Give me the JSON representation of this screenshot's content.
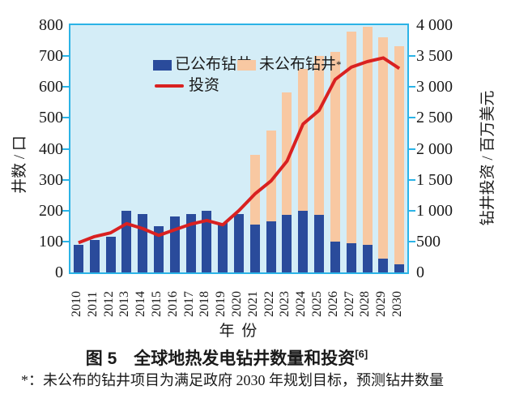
{
  "figure": {
    "title": "图 5　全球地热发电钻井数量和投资",
    "title_ref": "[6]",
    "footnote": "*：未公布的钻井项目为满足政府 2030 年规划目标，预测钻井数量",
    "legend_star": "*"
  },
  "colors": {
    "announced_bar": "#2a4b9b",
    "unannounced_bar": "#f8c8a2",
    "investment_line": "#d92121",
    "plot_background": "#d4edf7",
    "axis_frame": "#2bb3e6",
    "text": "#1a1a1a"
  },
  "chart_data": {
    "type": "bar",
    "subtype": "stacked-bars-with-line-overlay",
    "categories": [
      "2010",
      "2011",
      "2012",
      "2013",
      "2014",
      "2015",
      "2016",
      "2017",
      "2018",
      "2019",
      "2020",
      "2021",
      "2022",
      "2023",
      "2024",
      "2025",
      "2026",
      "2027",
      "2028",
      "2029",
      "2030"
    ],
    "series": [
      {
        "name": "已公布钻井",
        "type": "bar",
        "axis": "left",
        "color": "#2a4b9b",
        "values": [
          90,
          105,
          115,
          200,
          190,
          150,
          180,
          190,
          200,
          160,
          190,
          155,
          165,
          185,
          200,
          185,
          100,
          95,
          90,
          45,
          25
        ]
      },
      {
        "name": "未公布钻井",
        "type": "bar",
        "axis": "left",
        "stacked": true,
        "color": "#f8c8a2",
        "values": [
          0,
          0,
          0,
          0,
          0,
          0,
          0,
          0,
          0,
          0,
          0,
          225,
          295,
          395,
          460,
          515,
          615,
          685,
          705,
          715,
          705
        ]
      },
      {
        "name": "投资",
        "type": "line",
        "axis": "right",
        "color": "#d92121",
        "values": [
          480,
          580,
          640,
          790,
          710,
          600,
          690,
          780,
          840,
          770,
          1000,
          1270,
          1480,
          1800,
          2400,
          2620,
          3120,
          3320,
          3410,
          3470,
          3300
        ]
      }
    ],
    "left_axis": {
      "label": "井数 / 口",
      "min": 0,
      "max": 800,
      "tick_step": 100,
      "tick_labels": [
        "0",
        "100",
        "200",
        "300",
        "400",
        "500",
        "600",
        "700",
        "800"
      ]
    },
    "right_axis": {
      "label": "钻井投资 / 百万美元",
      "min": 0,
      "max": 4000,
      "tick_step": 500,
      "tick_labels": [
        "0",
        "500",
        "1 000",
        "1 500",
        "2 000",
        "2 500",
        "3 000",
        "3 500",
        "4 000"
      ]
    },
    "x_axis": {
      "label": "年 份"
    },
    "legend_position": "top-left-inside",
    "grid": false
  }
}
